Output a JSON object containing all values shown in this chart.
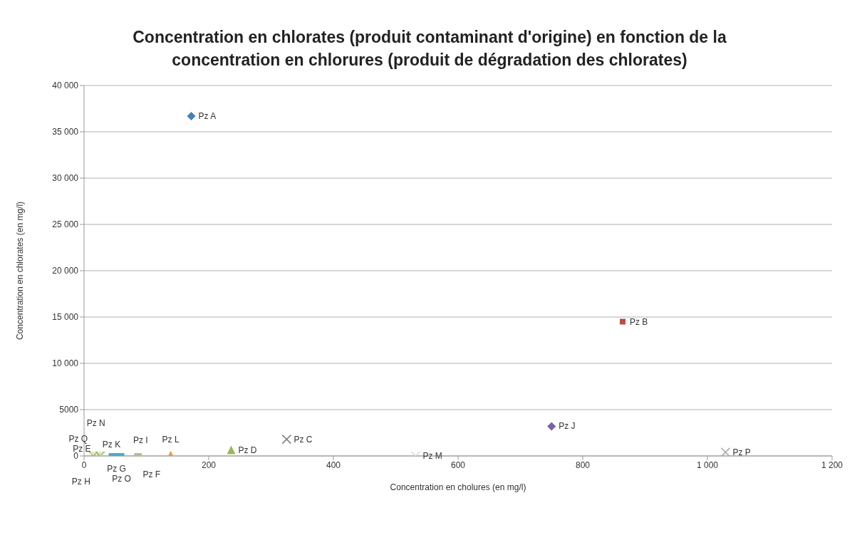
{
  "chart_data": {
    "type": "scatter",
    "title": "Concentration en chlorates (produit contaminant d'origine) en fonction de la concentration en chlorures (produit de dégradation des chlorates)",
    "xlabel": "Concentration en cholures (en mg/l)",
    "ylabel": "Concentration en chlorates (en mg/l)",
    "xlim": [
      0,
      1200
    ],
    "xticks": [
      0,
      200,
      400,
      600,
      800,
      {
        "value": 1000,
        "label": "1 000"
      },
      {
        "value": 1200,
        "label": "1 200"
      }
    ],
    "ylim": [
      0,
      40000
    ],
    "yticks": [
      0,
      5000,
      {
        "value": 10000,
        "label": "10 000"
      },
      {
        "value": 15000,
        "label": "15 000"
      },
      {
        "value": 20000,
        "label": "20 000"
      },
      {
        "value": 25000,
        "label": "25 000"
      },
      {
        "value": 30000,
        "label": "30 000"
      },
      {
        "value": 35000,
        "label": "35 000"
      },
      {
        "value": 40000,
        "label": "40 000"
      }
    ],
    "grid": "y",
    "legend": false,
    "series": [
      {
        "name": "Pz A",
        "color": "#4a7ebb",
        "marker": "diamond",
        "x": [
          172
        ],
        "values": [
          36700
        ]
      },
      {
        "name": "Pz B",
        "color": "#be4b48",
        "marker": "square",
        "x": [
          864
        ],
        "values": [
          14500
        ]
      },
      {
        "name": "Pz C",
        "color": "#7f7f7f",
        "marker": "cross",
        "x": [
          325
        ],
        "values": [
          1800
        ]
      },
      {
        "name": "Pz D",
        "color": "#98b954",
        "marker": "triangle",
        "x": [
          236
        ],
        "values": [
          650
        ]
      },
      {
        "name": "Pz E",
        "color": "#c3d69b",
        "marker": "cross",
        "x": [
          20
        ],
        "values": [
          0
        ]
      },
      {
        "name": "Pz F",
        "color": "#b3c28a",
        "marker": "square",
        "x": [
          85
        ],
        "values": [
          0
        ]
      },
      {
        "name": "Pz G",
        "color": "#4bacc6",
        "marker": "square",
        "x": [
          52
        ],
        "values": [
          0
        ]
      },
      {
        "name": "Pz H",
        "color": "#9bbb59",
        "marker": "cross",
        "x": [
          25
        ],
        "values": [
          0
        ]
      },
      {
        "name": "Pz I",
        "color": "#b3c28a",
        "marker": "square",
        "x": [
          88
        ],
        "values": [
          0
        ]
      },
      {
        "name": "Pz J",
        "color": "#7d60a0",
        "marker": "diamond",
        "x": [
          750
        ],
        "values": [
          3200
        ]
      },
      {
        "name": "Pz K",
        "color": "#4bacc6",
        "marker": "square",
        "x": [
          44
        ],
        "values": [
          0
        ]
      },
      {
        "name": "Pz L",
        "color": "#f79646",
        "marker": "triangle",
        "x": [
          139
        ],
        "values": [
          100
        ]
      },
      {
        "name": "Pz M",
        "color": "#d9d9d9",
        "marker": "cross",
        "x": [
          532
        ],
        "values": [
          0
        ]
      },
      {
        "name": "Pz N",
        "color": "#c3d69b",
        "marker": "cross",
        "x": [
          27
        ],
        "values": [
          0
        ]
      },
      {
        "name": "Pz O",
        "color": "#4bacc6",
        "marker": "square",
        "x": [
          60
        ],
        "values": [
          0
        ]
      },
      {
        "name": "Pz P",
        "color": "#a5a5a5",
        "marker": "cross",
        "x": [
          1029
        ],
        "values": [
          400
        ]
      },
      {
        "name": "Pz Q",
        "color": "#9bbb59",
        "marker": "cross",
        "x": [
          15
        ],
        "values": [
          0
        ]
      }
    ]
  }
}
